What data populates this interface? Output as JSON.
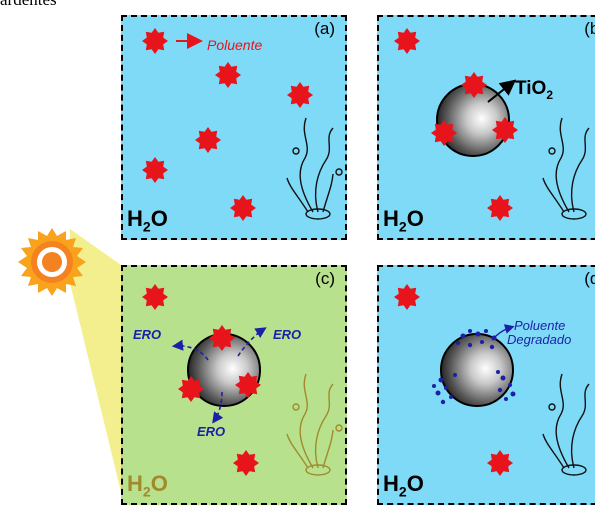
{
  "caption": "ardentes",
  "pollutant_label": "Poluente",
  "catalyst_label": "TiO",
  "catalyst_sub": "2",
  "ero_label": "ERO",
  "degraded_label_1": "Poluente",
  "degraded_label_2": "Degradado",
  "water_main": "H",
  "water_sub": "2",
  "water_o": "O",
  "panels": {
    "a": "(a)",
    "b": "(b)",
    "c": "(c)",
    "d": "(d)"
  },
  "colors": {
    "water": "#7fdaf7",
    "irradiated_water": "#b7e18c",
    "pollutant": "#e8141c",
    "reactive_species": "#1d1fa8",
    "sun": "#f58220",
    "light_beam": "#f3ef8e"
  },
  "icons": [
    "sun-icon",
    "pollutant-star-icon",
    "tio2-particle-icon",
    "seaweed-icon"
  ]
}
